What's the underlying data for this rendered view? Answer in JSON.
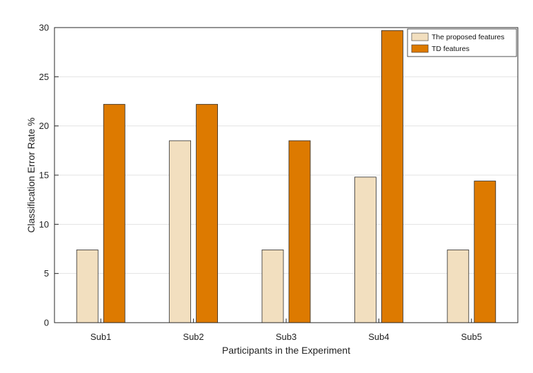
{
  "chart_data": {
    "type": "bar",
    "title": "",
    "xlabel": "Participants in the Experiment",
    "ylabel": "Classification Error Rate %",
    "categories": [
      "Sub1",
      "Sub2",
      "Sub3",
      "Sub4",
      "Sub5"
    ],
    "series": [
      {
        "name": "The proposed features",
        "color": "#f2dfbf",
        "values": [
          7.4,
          18.5,
          7.4,
          14.8,
          7.4
        ]
      },
      {
        "name": "TD features",
        "color": "#dd7a00",
        "values": [
          22.2,
          22.2,
          18.5,
          29.7,
          14.4
        ]
      }
    ],
    "ylim": [
      0,
      30
    ],
    "yticks": [
      0,
      5,
      10,
      15,
      20,
      25,
      30
    ],
    "grid": true,
    "legend_position": "top-right"
  }
}
